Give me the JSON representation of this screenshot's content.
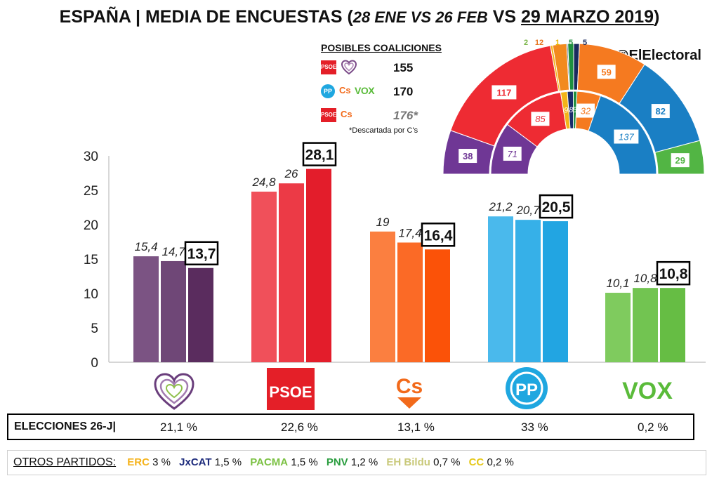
{
  "title": {
    "prefix": "ESPAÑA | MEDIA DE ENCUESTAS (",
    "part1": "28 ENE VS 26 FEB",
    "part2": " VS ",
    "part3": "29 MARZO 2019",
    "suffix": ")"
  },
  "handle": "@ElElectoral",
  "coalitions": {
    "title": "POSIBLES COALICIONES",
    "rows": [
      {
        "value": "155",
        "parties": [
          "PSOE",
          "Podemos"
        ]
      },
      {
        "value": "170",
        "parties": [
          "PP",
          "Cs",
          "VOX"
        ]
      },
      {
        "value": "176*",
        "parties": [
          "PSOE",
          "Cs"
        ]
      }
    ],
    "note": "*Descartada por C's",
    "logos": {
      "psoe": "PSOE",
      "pp": "PP",
      "cs": "Cs",
      "vox": "VOX"
    }
  },
  "party_logos": {
    "psoe": "PSOE",
    "cs": "Cs",
    "pp": "PP",
    "vox": "VOX"
  },
  "chart_data": [
    {
      "type": "bar",
      "categories": [
        "Unidas Podemos",
        "PSOE",
        "Cs",
        "PP",
        "VOX"
      ],
      "series": [
        {
          "values": [
            15.4,
            24.8,
            19,
            21.2,
            10.1
          ]
        },
        {
          "values": [
            14.7,
            26,
            17.4,
            20.7,
            10.8
          ]
        },
        {
          "values": [
            13.7,
            28.1,
            16.4,
            20.5,
            10.8
          ]
        }
      ],
      "value_labels": [
        [
          "15,4",
          "24,8",
          "19",
          "21,2",
          "10,1"
        ],
        [
          "14,7",
          "26",
          "17,4",
          "20,7",
          "10,8"
        ],
        [
          "13,7",
          "28,1",
          "16,4",
          "20,5",
          "10,8"
        ]
      ],
      "colors": [
        [
          "#7b5383",
          "#6f4777",
          "#5a2c5e"
        ],
        [
          "#f0505a",
          "#ec3a46",
          "#e31d2b"
        ],
        [
          "#fb7f40",
          "#fb6a26",
          "#fb5208"
        ],
        [
          "#4ab9ec",
          "#36b0e8",
          "#22a5e2"
        ],
        [
          "#7fcb5e",
          "#72c451",
          "#66bd44"
        ]
      ],
      "ylim": [
        0,
        30
      ],
      "yticks": [
        "0",
        "5",
        "10",
        "15",
        "20",
        "25",
        "30"
      ],
      "grid": false
    },
    {
      "type": "pie",
      "subtype": "hemicycle",
      "outer_ring": [
        {
          "party": "Podemos",
          "value": 38,
          "color": "#6f3795"
        },
        {
          "party": "PSOE",
          "value": 117,
          "color": "#ee2b33"
        },
        {
          "party": "ERC",
          "value": 2,
          "color": "#f3b418"
        },
        {
          "party": "Cs",
          "value": 12,
          "color": "#f28a1e"
        },
        {
          "party": "PDeCAT",
          "value": 1,
          "color": "#1a2d6b"
        },
        {
          "party": "PNV",
          "value": 5,
          "color": "#1f8f3f"
        },
        {
          "party": "CC",
          "value": 5,
          "color": "#1a2a5e"
        },
        {
          "party": "Cs",
          "value": 59,
          "color": "#f57a20"
        },
        {
          "party": "PP",
          "value": 82,
          "color": "#1a7fc4"
        },
        {
          "party": "VOX",
          "value": 29,
          "color": "#52b544"
        }
      ],
      "inner_ring": [
        {
          "party": "Podemos",
          "value": 71,
          "color": "#6f3795"
        },
        {
          "party": "PSOE",
          "value": 85,
          "color": "#ee2b33"
        },
        {
          "party": "ERC",
          "value": 9,
          "color": "#f3b418"
        },
        {
          "party": "PDeCAT",
          "value": 8,
          "color": "#1a2d6b"
        },
        {
          "party": "PNV",
          "value": 5,
          "color": "#1f8f3f"
        },
        {
          "party": "Cs",
          "value": 32,
          "color": "#f57a20"
        },
        {
          "party": "PP",
          "value": 137,
          "color": "#1a7fc4"
        }
      ],
      "top_labels": [
        {
          "text": "2",
          "color": "#7ab648"
        },
        {
          "text": "12",
          "color": "#e87722"
        },
        {
          "text": "1",
          "color": "#e8b400"
        },
        {
          "text": "5",
          "color": "#1f8f3f"
        },
        {
          "text": "5",
          "color": "#1a2a5e"
        }
      ]
    }
  ],
  "elecciones": {
    "label": "ELECCIONES 26-J|",
    "values": [
      "21,1 %",
      "22,6  %",
      "13,1 %",
      "33 %",
      "0,2 %"
    ]
  },
  "otros": {
    "label": "OTROS PARTIDOS:",
    "items": [
      {
        "name": "ERC",
        "value": "3 %",
        "color": "#f5b31b"
      },
      {
        "name": "JxCAT",
        "value": "1,5 %",
        "color": "#1d2b7c"
      },
      {
        "name": "PACMA",
        "value": "1,5 %",
        "color": "#7bc143"
      },
      {
        "name": "PNV",
        "value": "1,2 %",
        "color": "#2a9d3f"
      },
      {
        "name": "EH Bildu",
        "value": "0,7 %",
        "color": "#c9c97a"
      },
      {
        "name": "CC",
        "value": "0,2 %",
        "color": "#e5c81a"
      }
    ]
  }
}
